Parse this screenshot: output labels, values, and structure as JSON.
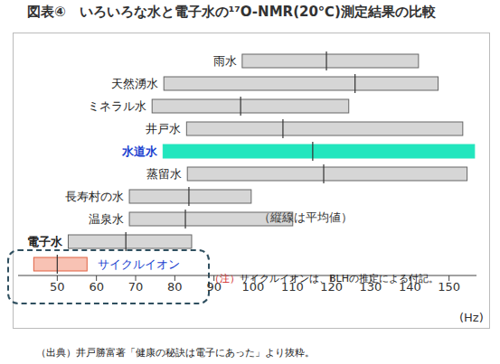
{
  "chart_data": {
    "type": "range_bar",
    "orientation": "horizontal",
    "title": "図表④　いろいろな水と電子水の¹⁷O-NMR(20℃)測定結果の比較",
    "categories": [
      "雨水",
      "天然湧水",
      "ミネラル水",
      "井戸水",
      "水道水",
      "蒸留水",
      "長寿村の水",
      "温泉水",
      "電子水",
      "サイクルイオン"
    ],
    "values": [
      [
        97.2,
        142.2
      ],
      [
        77.2,
        147.2
      ],
      [
        74.2,
        124.4
      ],
      [
        83,
        153.5
      ],
      [
        77,
        156.5
      ],
      [
        83.2,
        154.6
      ],
      [
        68.4,
        99.5
      ],
      [
        68.4,
        110.1
      ],
      [
        52.8,
        84.3
      ],
      [
        44,
        57.6
      ]
    ],
    "means": [
      118.7,
      126,
      96.8,
      107.6,
      115.2,
      118,
      83.6,
      82.7,
      67.5,
      50
    ],
    "colors": [
      "#d6d6d6",
      "#d6d6d6",
      "#d6d6d6",
      "#d6d6d6",
      "#22e6be",
      "#d6d6d6",
      "#d6d6d6",
      "#d6d6d6",
      "#d6d6d6",
      "#f8c2b4"
    ],
    "x_label": "(Hz)",
    "xlim": [
      40,
      157
    ],
    "xticks": [
      50,
      60,
      70,
      80,
      90,
      100,
      110,
      120,
      130,
      140,
      150
    ],
    "annotations": [
      "（縦線は平均値）"
    ],
    "note_label": "（注）",
    "note": "サイクルイオンは、BLHの推定による付記。",
    "source": "（出典）井戸勝富著「健康の秘訣は電子にあった」より抜粋。"
  }
}
